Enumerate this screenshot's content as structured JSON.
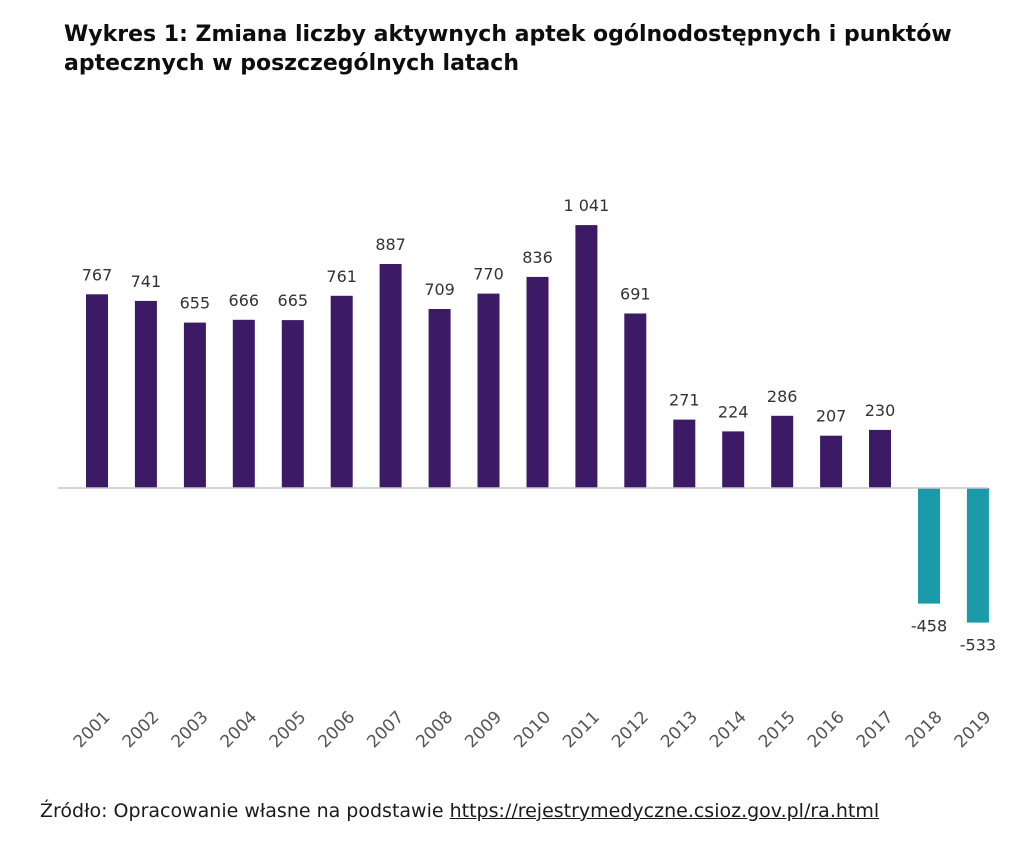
{
  "title": "Wykres 1: Zmiana liczby aktywnych aptek ogólnodostępnych i punktów aptecznych w poszczególnych latach",
  "source": {
    "prefix": "Źródło: Opracowanie własne na podstawie ",
    "link": "https://rejestrymedyczne.csioz.gov.pl/ra.html"
  },
  "colors": {
    "positive": "#3d1a66",
    "negative": "#1b9aaa",
    "axis": "#c8c8c8",
    "label": "#333333",
    "tick": "#555555"
  },
  "chart_data": {
    "type": "bar",
    "title": "Wykres 1: Zmiana liczby aktywnych aptek ogólnodostępnych i punktów aptecznych w poszczególnych latach",
    "xlabel": "",
    "ylabel": "",
    "grid": false,
    "legend": "none",
    "categories": [
      "2001",
      "2002",
      "2003",
      "2004",
      "2005",
      "2006",
      "2007",
      "2008",
      "2009",
      "2010",
      "2011",
      "2012",
      "2013",
      "2014",
      "2015",
      "2016",
      "2017",
      "2018",
      "2019"
    ],
    "values": [
      767,
      741,
      655,
      666,
      665,
      761,
      887,
      709,
      770,
      836,
      1041,
      691,
      271,
      224,
      286,
      207,
      230,
      -458,
      -533
    ],
    "value_labels": [
      "767",
      "741",
      "655",
      "666",
      "665",
      "761",
      "887",
      "709",
      "770",
      "836",
      "1 041",
      "691",
      "271",
      "224",
      "286",
      "207",
      "230",
      "-458",
      "-533"
    ]
  }
}
